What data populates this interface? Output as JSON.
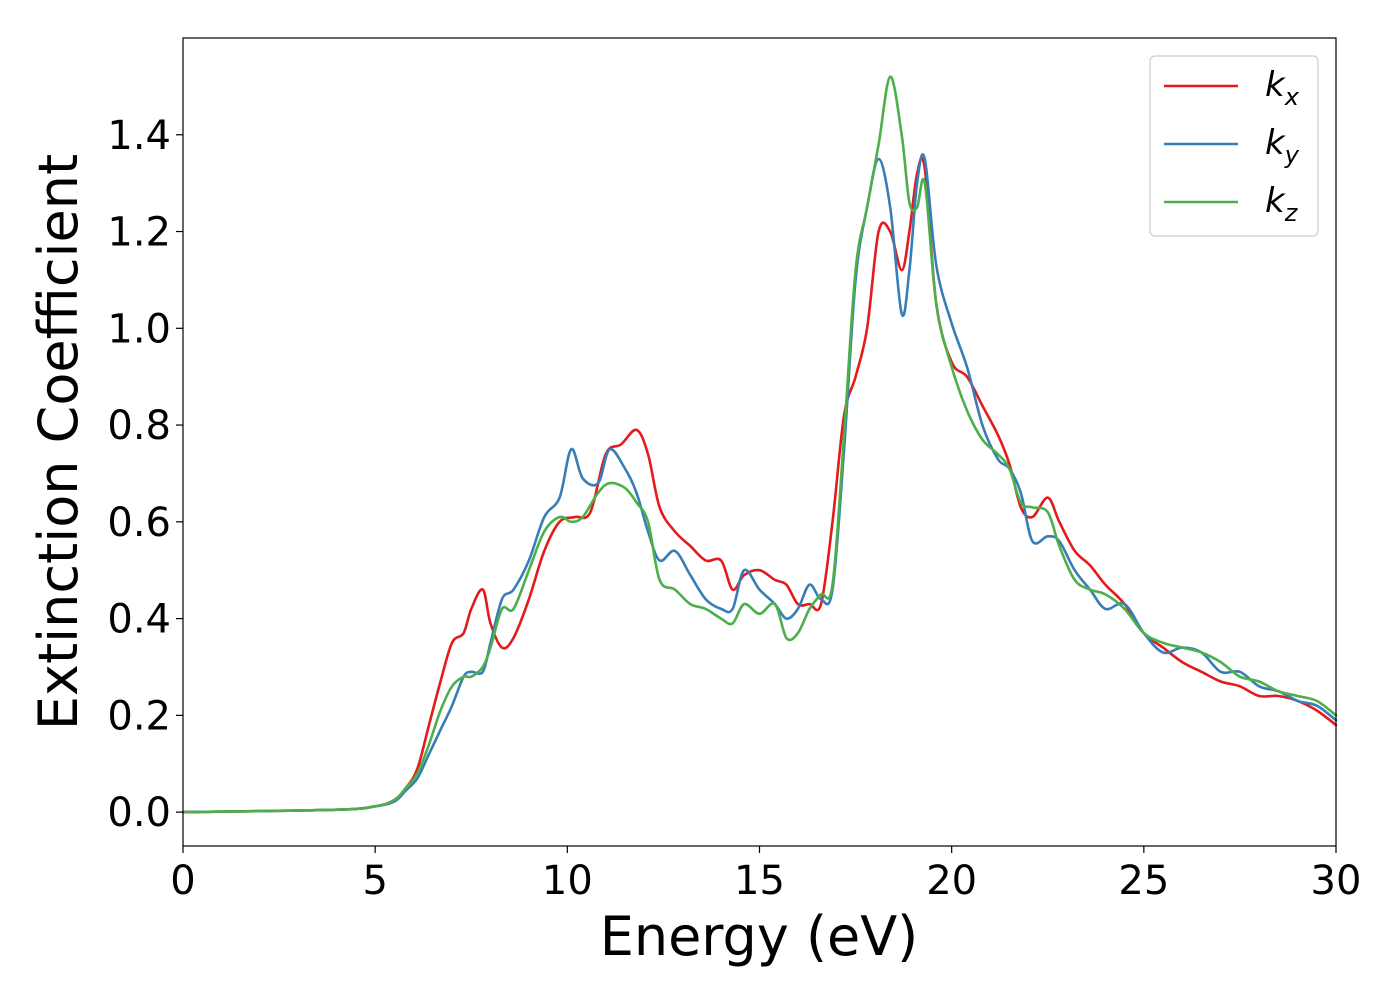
{
  "chart_data": {
    "type": "line",
    "title": "",
    "xlabel": "Energy (eV)",
    "ylabel": "Extinction Coefficient",
    "xlim": [
      0,
      30
    ],
    "ylim": [
      -0.07,
      1.6
    ],
    "xticks": [
      0,
      5,
      10,
      15,
      20,
      25,
      30
    ],
    "xtick_labels": [
      "0",
      "5",
      "10",
      "15",
      "20",
      "25",
      "30"
    ],
    "yticks": [
      0.0,
      0.2,
      0.4,
      0.6,
      0.8,
      1.0,
      1.2,
      1.4
    ],
    "ytick_labels": [
      "0.0",
      "0.2",
      "0.4",
      "0.6",
      "0.8",
      "1.0",
      "1.2",
      "1.4"
    ],
    "grid": false,
    "legend_position": "top-right",
    "series": [
      {
        "name": "k_x",
        "legend_base": "k",
        "legend_sub": "x",
        "color": "#e41a1c",
        "x": [
          0,
          4,
          5,
          5.5,
          5.8,
          6.1,
          6.4,
          6.7,
          7.0,
          7.3,
          7.5,
          7.8,
          8.0,
          8.3,
          8.6,
          9.0,
          9.4,
          9.8,
          10.2,
          10.6,
          11.0,
          11.4,
          11.8,
          12.1,
          12.4,
          12.8,
          13.2,
          13.6,
          14.0,
          14.3,
          14.6,
          15.0,
          15.4,
          15.7,
          16.0,
          16.3,
          16.6,
          16.9,
          17.2,
          17.5,
          17.8,
          18.1,
          18.4,
          18.7,
          18.9,
          19.1,
          19.3,
          19.6,
          20.0,
          20.4,
          20.8,
          21.2,
          21.5,
          21.8,
          22.1,
          22.5,
          22.8,
          23.2,
          23.6,
          24.0,
          24.5,
          25.0,
          25.5,
          26.0,
          26.5,
          27.0,
          27.5,
          28.0,
          28.5,
          29.0,
          29.5,
          30.0
        ],
        "y": [
          0.0,
          0.005,
          0.012,
          0.025,
          0.05,
          0.09,
          0.18,
          0.27,
          0.35,
          0.37,
          0.42,
          0.46,
          0.39,
          0.34,
          0.36,
          0.44,
          0.54,
          0.6,
          0.61,
          0.62,
          0.74,
          0.76,
          0.79,
          0.74,
          0.63,
          0.58,
          0.55,
          0.52,
          0.52,
          0.46,
          0.49,
          0.5,
          0.48,
          0.47,
          0.43,
          0.43,
          0.43,
          0.6,
          0.82,
          0.9,
          1.0,
          1.2,
          1.2,
          1.12,
          1.2,
          1.32,
          1.33,
          1.05,
          0.93,
          0.9,
          0.84,
          0.78,
          0.72,
          0.63,
          0.61,
          0.65,
          0.6,
          0.54,
          0.51,
          0.47,
          0.43,
          0.37,
          0.34,
          0.31,
          0.29,
          0.27,
          0.26,
          0.24,
          0.24,
          0.23,
          0.21,
          0.18
        ]
      },
      {
        "name": "k_y",
        "legend_base": "k",
        "legend_sub": "y",
        "color": "#377eb8",
        "x": [
          0,
          4,
          5,
          5.5,
          5.8,
          6.1,
          6.4,
          6.7,
          7.0,
          7.3,
          7.5,
          7.8,
          8.0,
          8.3,
          8.6,
          9.0,
          9.4,
          9.8,
          10.1,
          10.4,
          10.8,
          11.1,
          11.5,
          11.8,
          12.1,
          12.4,
          12.8,
          13.2,
          13.6,
          14.0,
          14.3,
          14.6,
          15.0,
          15.4,
          15.7,
          16.0,
          16.3,
          16.6,
          16.9,
          17.2,
          17.5,
          17.8,
          18.1,
          18.4,
          18.7,
          18.9,
          19.1,
          19.3,
          19.6,
          20.0,
          20.4,
          20.8,
          21.2,
          21.5,
          21.8,
          22.1,
          22.5,
          22.8,
          23.2,
          23.6,
          24.0,
          24.5,
          25.0,
          25.5,
          26.0,
          26.5,
          27.0,
          27.5,
          28.0,
          28.5,
          29.0,
          29.5,
          30.0
        ],
        "y": [
          0.0,
          0.005,
          0.012,
          0.022,
          0.045,
          0.07,
          0.12,
          0.17,
          0.22,
          0.28,
          0.29,
          0.29,
          0.35,
          0.44,
          0.46,
          0.52,
          0.61,
          0.65,
          0.75,
          0.69,
          0.68,
          0.75,
          0.71,
          0.66,
          0.58,
          0.52,
          0.54,
          0.49,
          0.44,
          0.42,
          0.42,
          0.5,
          0.46,
          0.43,
          0.4,
          0.42,
          0.47,
          0.44,
          0.46,
          0.75,
          1.1,
          1.25,
          1.35,
          1.25,
          1.03,
          1.12,
          1.3,
          1.35,
          1.13,
          1.01,
          0.92,
          0.8,
          0.73,
          0.71,
          0.66,
          0.56,
          0.57,
          0.56,
          0.5,
          0.46,
          0.42,
          0.43,
          0.37,
          0.33,
          0.34,
          0.33,
          0.29,
          0.29,
          0.26,
          0.25,
          0.23,
          0.22,
          0.19
        ]
      },
      {
        "name": "k_z",
        "legend_base": "k",
        "legend_sub": "z",
        "color": "#4daf4a",
        "x": [
          0,
          4,
          5,
          5.5,
          5.8,
          6.1,
          6.4,
          6.7,
          7.0,
          7.3,
          7.5,
          7.8,
          8.0,
          8.3,
          8.6,
          9.0,
          9.4,
          9.8,
          10.1,
          10.4,
          10.8,
          11.1,
          11.5,
          11.8,
          12.1,
          12.4,
          12.8,
          13.2,
          13.6,
          14.0,
          14.3,
          14.6,
          15.0,
          15.4,
          15.7,
          16.0,
          16.3,
          16.6,
          16.9,
          17.2,
          17.5,
          17.8,
          18.1,
          18.4,
          18.7,
          18.9,
          19.1,
          19.3,
          19.6,
          20.0,
          20.4,
          20.8,
          21.2,
          21.5,
          21.8,
          22.1,
          22.5,
          22.8,
          23.2,
          23.6,
          24.0,
          24.5,
          25.0,
          25.5,
          26.0,
          26.5,
          27.0,
          27.5,
          28.0,
          28.5,
          29.0,
          29.5,
          30.0
        ],
        "y": [
          0.0,
          0.005,
          0.012,
          0.025,
          0.05,
          0.08,
          0.14,
          0.21,
          0.26,
          0.28,
          0.28,
          0.3,
          0.34,
          0.42,
          0.42,
          0.5,
          0.58,
          0.61,
          0.6,
          0.61,
          0.66,
          0.68,
          0.67,
          0.64,
          0.6,
          0.48,
          0.46,
          0.43,
          0.42,
          0.4,
          0.39,
          0.43,
          0.41,
          0.43,
          0.36,
          0.37,
          0.42,
          0.45,
          0.47,
          0.78,
          1.12,
          1.25,
          1.38,
          1.52,
          1.4,
          1.26,
          1.25,
          1.3,
          1.05,
          0.92,
          0.83,
          0.77,
          0.74,
          0.71,
          0.64,
          0.63,
          0.62,
          0.55,
          0.48,
          0.46,
          0.45,
          0.42,
          0.37,
          0.35,
          0.34,
          0.33,
          0.31,
          0.28,
          0.27,
          0.25,
          0.24,
          0.23,
          0.2
        ]
      }
    ]
  }
}
